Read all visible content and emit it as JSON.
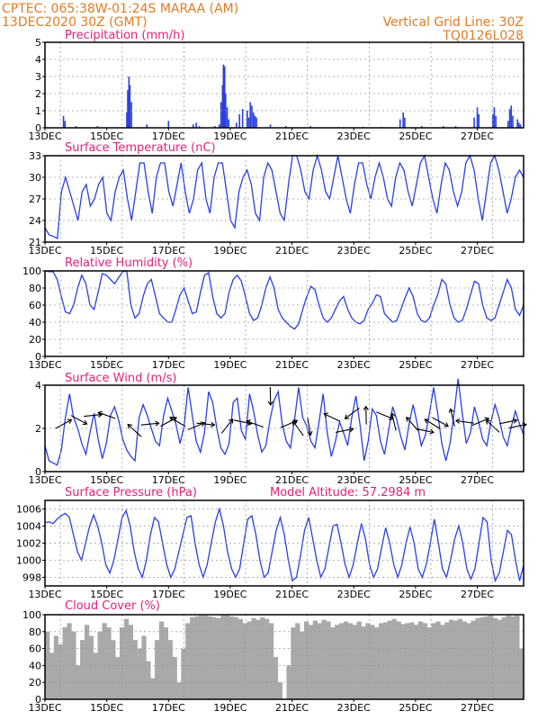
{
  "header": {
    "line1_left": "CPTEC:   065:38W-01:24S   MARAA (AM)",
    "line2_left": "13DEC2020 30Z (GMT)",
    "line1_right": "Vertical Grid Line: 30Z",
    "line2_right": "TQ0126L028"
  },
  "colors": {
    "title": "#e0217a",
    "header": "#e07b24",
    "series": "#2a3fe0",
    "cloud": "#a9a9a9",
    "arrow": "#000000"
  },
  "x_ticks": [
    "13DEC",
    "15DEC",
    "17DEC",
    "19DEC",
    "21DEC",
    "23DEC",
    "25DEC",
    "27DEC"
  ],
  "chart_data": [
    {
      "id": "precip",
      "type": "bar",
      "title": "Precipitation (mm/h)",
      "ylim": [
        0,
        5
      ],
      "yticks": [
        "0",
        "1",
        "2",
        "3",
        "4",
        "5"
      ],
      "x_range_days": [
        0,
        15.5
      ],
      "values": [
        [
          0.6,
          0.7
        ],
        [
          0.65,
          0.4
        ],
        [
          1.0,
          0.1
        ],
        [
          1.7,
          0.1
        ],
        [
          2.65,
          0.9
        ],
        [
          2.68,
          2.2
        ],
        [
          2.72,
          3.0
        ],
        [
          2.75,
          2.5
        ],
        [
          2.8,
          1.5
        ],
        [
          3.3,
          0.2
        ],
        [
          4.0,
          0.4
        ],
        [
          4.8,
          0.2
        ],
        [
          4.9,
          0.3
        ],
        [
          5.0,
          0.1
        ],
        [
          5.5,
          0.1
        ],
        [
          5.65,
          0.2
        ],
        [
          5.7,
          1.5
        ],
        [
          5.75,
          2.5
        ],
        [
          5.78,
          3.7
        ],
        [
          5.82,
          3.6
        ],
        [
          5.85,
          2.0
        ],
        [
          5.9,
          1.2
        ],
        [
          5.95,
          0.5
        ],
        [
          6.2,
          0.3
        ],
        [
          6.3,
          0.8
        ],
        [
          6.4,
          1.1
        ],
        [
          6.55,
          1.0
        ],
        [
          6.6,
          0.6
        ],
        [
          6.65,
          1.5
        ],
        [
          6.7,
          1.3
        ],
        [
          6.75,
          0.9
        ],
        [
          6.8,
          0.7
        ],
        [
          6.85,
          0.6
        ],
        [
          7.3,
          0.2
        ],
        [
          7.8,
          0.1
        ],
        [
          8.6,
          0.1
        ],
        [
          9.5,
          0.05
        ],
        [
          10.3,
          0.05
        ],
        [
          10.9,
          0.05
        ],
        [
          11.5,
          0.5
        ],
        [
          11.6,
          0.9
        ],
        [
          11.65,
          0.6
        ],
        [
          12.2,
          0.1
        ],
        [
          12.9,
          0.1
        ],
        [
          13.3,
          0.1
        ],
        [
          13.9,
          0.6
        ],
        [
          14.0,
          1.2
        ],
        [
          14.05,
          0.8
        ],
        [
          14.5,
          0.8
        ],
        [
          14.55,
          1.2
        ],
        [
          14.6,
          0.7
        ],
        [
          15.0,
          0.4
        ],
        [
          15.05,
          1.1
        ],
        [
          15.1,
          1.3
        ],
        [
          15.15,
          0.7
        ],
        [
          15.3,
          0.5
        ],
        [
          15.35,
          0.3
        ],
        [
          15.4,
          0.2
        ]
      ]
    },
    {
      "id": "temp",
      "type": "line",
      "title": "Surface Temperature (nC)",
      "ylim": [
        21,
        33
      ],
      "yticks": [
        "21",
        "24",
        "27",
        "30",
        "33"
      ],
      "x_range_days": [
        0,
        15.5
      ],
      "values": [
        23,
        22,
        21.8,
        21.5,
        28,
        30,
        28,
        26,
        24,
        28,
        29,
        26,
        27,
        29,
        30,
        25,
        24,
        28,
        30,
        31,
        27,
        24,
        28,
        32,
        32,
        28,
        25,
        30,
        32,
        32,
        28,
        26,
        29,
        32,
        28,
        25,
        27,
        31,
        32,
        27,
        25,
        30,
        32,
        32,
        28,
        24,
        23,
        28,
        30,
        31,
        29,
        25,
        24,
        30,
        32,
        31,
        28,
        25,
        24,
        29,
        33,
        33,
        31,
        28,
        27,
        31,
        33,
        31,
        28,
        27,
        30,
        33,
        30,
        27,
        25,
        29,
        32,
        32,
        29,
        27,
        30,
        32,
        30,
        27,
        26,
        30,
        32,
        31,
        28,
        26,
        29,
        32,
        33,
        30,
        27,
        25,
        29,
        32,
        31,
        28,
        26,
        28,
        32,
        33,
        31,
        27,
        24,
        28,
        32,
        33,
        31,
        28,
        25,
        27,
        30,
        31,
        30
      ]
    },
    {
      "id": "rh",
      "type": "line",
      "title": "Relative Humidity (%)",
      "ylim": [
        0,
        100
      ],
      "yticks": [
        "0",
        "20",
        "40",
        "60",
        "80",
        "100"
      ],
      "x_range_days": [
        0,
        15.5
      ],
      "values": [
        100,
        99,
        99,
        90,
        70,
        52,
        50,
        60,
        80,
        95,
        85,
        60,
        55,
        75,
        97,
        95,
        90,
        85,
        92,
        99,
        100,
        60,
        45,
        50,
        70,
        85,
        90,
        70,
        50,
        45,
        40,
        40,
        55,
        72,
        80,
        65,
        50,
        52,
        75,
        95,
        98,
        70,
        50,
        45,
        50,
        75,
        90,
        95,
        88,
        70,
        50,
        42,
        45,
        60,
        80,
        93,
        80,
        55,
        45,
        40,
        35,
        32,
        38,
        55,
        70,
        82,
        78,
        60,
        45,
        40,
        45,
        55,
        65,
        70,
        55,
        45,
        40,
        38,
        42,
        55,
        62,
        72,
        70,
        50,
        45,
        40,
        42,
        55,
        68,
        80,
        70,
        50,
        42,
        40,
        45,
        60,
        72,
        90,
        85,
        60,
        45,
        40,
        42,
        55,
        72,
        88,
        85,
        60,
        45,
        42,
        45,
        60,
        75,
        90,
        80,
        55,
        48,
        60
      ]
    },
    {
      "id": "wind",
      "type": "line",
      "title": "Surface Wind (m/s)",
      "ylim": [
        0,
        4
      ],
      "yticks": [
        "0",
        "2",
        "4"
      ],
      "x_range_days": [
        0,
        15.5
      ],
      "values": [
        1.2,
        0.5,
        0.4,
        0.3,
        1,
        2.5,
        3.6,
        2.5,
        2,
        1.3,
        0.8,
        1.8,
        2.7,
        1.5,
        0.6,
        1.3,
        2.6,
        3,
        2.4,
        1.5,
        1,
        0.7,
        0.5,
        2.5,
        3.1,
        2.6,
        2,
        1.4,
        1.2,
        2.6,
        3.4,
        2.8,
        2.2,
        1.3,
        2.1,
        3.9,
        2.6,
        1.4,
        0.9,
        1.8,
        3.7,
        3.2,
        2,
        1.1,
        0.8,
        1.3,
        3.2,
        3.4,
        1.9,
        1.5,
        3.6,
        2.8,
        1.7,
        0.9,
        1.2,
        2.4,
        3.3,
        3.7,
        2.2,
        1.4,
        1.1,
        2.4,
        3.9,
        2.5,
        2.1,
        1.4,
        1.1,
        2.3,
        3.6,
        1.8,
        0.7,
        1.4,
        2.3,
        1.8,
        1.2,
        2.5,
        3.5,
        2.2,
        0.5,
        1.4,
        2.9,
        2.6,
        1.4,
        0.8,
        1.9,
        3,
        2.4,
        1.6,
        1,
        2.2,
        3.1,
        2.2,
        1.2,
        1.7,
        2.7,
        3.9,
        2.7,
        1.3,
        0.5,
        1.3,
        2.7,
        4.3,
        2.7,
        1.3,
        1.8,
        3,
        2.3,
        1.5,
        1.2,
        2.3,
        3.1,
        2.5,
        1.6,
        1.2,
        2.1,
        2.8,
        2.2,
        1.7
      ],
      "arrows": [
        [
          0.6,
          2.2,
          0.5
        ],
        [
          1.1,
          2.4,
          -0.5
        ],
        [
          1.55,
          2.6,
          0.1
        ],
        [
          2.0,
          2.6,
          2.8
        ],
        [
          2.9,
          1.9,
          2.4
        ],
        [
          3.4,
          2.2,
          0.1
        ],
        [
          4.0,
          2.3,
          0.5
        ],
        [
          4.3,
          2.3,
          2.6
        ],
        [
          4.9,
          2.1,
          0.4
        ],
        [
          5.2,
          2.2,
          -0.1
        ],
        [
          5.9,
          2.1,
          0.9
        ],
        [
          6.4,
          2.3,
          -0.2
        ],
        [
          6.8,
          2.2,
          2.8
        ],
        [
          7.3,
          3.5,
          -1.55
        ],
        [
          7.9,
          2.2,
          0.4
        ],
        [
          8.2,
          2.0,
          2.2
        ],
        [
          8.55,
          2.1,
          -1.4
        ],
        [
          9.3,
          2.5,
          2.7
        ],
        [
          9.7,
          1.9,
          0.2
        ],
        [
          9.95,
          2.7,
          -2.5
        ],
        [
          10.4,
          2.6,
          1.6
        ],
        [
          11.0,
          2.6,
          -0.4
        ],
        [
          11.3,
          2.3,
          1.8
        ],
        [
          11.9,
          2.2,
          2.3
        ],
        [
          12.3,
          1.9,
          -0.2
        ],
        [
          12.55,
          2.2,
          2.6
        ],
        [
          12.8,
          2.3,
          -0.5
        ],
        [
          13.2,
          2.5,
          1.8
        ],
        [
          13.6,
          2.3,
          3.0
        ],
        [
          14.1,
          2.3,
          0.4
        ],
        [
          14.5,
          2.1,
          2.4
        ],
        [
          15.0,
          2.3,
          0.2
        ],
        [
          15.3,
          2.1,
          0.2
        ]
      ]
    },
    {
      "id": "pressure",
      "type": "line",
      "title": "Surface Pressure (hPa)",
      "subtitle": "Model Altitude: 57.2984 m",
      "ylim": [
        997,
        1007
      ],
      "yticks": [
        "998",
        "1000",
        "1002",
        "1004",
        "1006"
      ],
      "x_range_days": [
        0,
        15.5
      ],
      "values": [
        1004.4,
        1004.5,
        1004.3,
        1004.8,
        1005.2,
        1005.5,
        1005,
        1003,
        1001,
        1000,
        1002,
        1004,
        1005.3,
        1004,
        1002,
        999.5,
        998.5,
        1000,
        1002.5,
        1005,
        1005.8,
        1004,
        1001,
        999,
        998,
        1000,
        1003,
        1005,
        1004.5,
        1002,
        999.5,
        998,
        999,
        1001,
        1003,
        1005,
        1005.2,
        1002,
        999.5,
        998,
        999.5,
        1002,
        1004.5,
        1006,
        1004,
        1001,
        999,
        998,
        999,
        1002,
        1004.8,
        1005.2,
        1003,
        1000,
        998,
        998.5,
        1001,
        1003.5,
        1005,
        1003,
        1000,
        997.6,
        998,
        1000.5,
        1003.5,
        1005,
        1002.5,
        1000,
        998,
        999,
        1001.5,
        1004,
        1004.2,
        1002,
        999.5,
        998,
        999.5,
        1002,
        1004.3,
        1002.5,
        999.5,
        998,
        999,
        1001.5,
        1003.8,
        1002,
        999.5,
        998,
        999.5,
        1002,
        1003.9,
        1002,
        999,
        998,
        999.5,
        1002,
        1004.8,
        1002,
        999,
        998,
        1000,
        1002.5,
        1004,
        1002,
        999,
        997.8,
        999,
        1002,
        1005,
        1004.5,
        1000,
        997.6,
        998.5,
        1001,
        1003.5,
        1003,
        1000,
        997.6,
        999.4
      ]
    },
    {
      "id": "cloud",
      "type": "area",
      "title": "Cloud Cover (%)",
      "ylim": [
        0,
        100
      ],
      "yticks": [
        "0",
        "20",
        "40",
        "60",
        "80",
        "100"
      ],
      "x_range_days": [
        0,
        15.5
      ],
      "values": [
        80,
        55,
        75,
        65,
        85,
        90,
        80,
        40,
        70,
        88,
        75,
        55,
        80,
        90,
        85,
        70,
        50,
        85,
        95,
        88,
        70,
        60,
        75,
        45,
        25,
        70,
        92,
        85,
        70,
        50,
        20,
        60,
        90,
        97,
        98,
        99,
        99,
        98,
        97,
        96,
        99,
        99,
        98,
        97,
        95,
        90,
        92,
        96,
        94,
        97,
        95,
        90,
        50,
        20,
        0,
        40,
        85,
        90,
        80,
        92,
        88,
        93,
        90,
        94,
        92,
        85,
        88,
        90,
        92,
        90,
        88,
        92,
        86,
        90,
        88,
        85,
        90,
        91,
        93,
        95,
        92,
        89,
        90,
        91,
        88,
        92,
        90,
        85,
        90,
        92,
        88,
        91,
        94,
        93,
        95,
        92,
        90,
        93,
        96,
        97,
        98,
        99,
        96,
        94,
        97,
        99,
        98,
        99,
        60
      ]
    }
  ]
}
